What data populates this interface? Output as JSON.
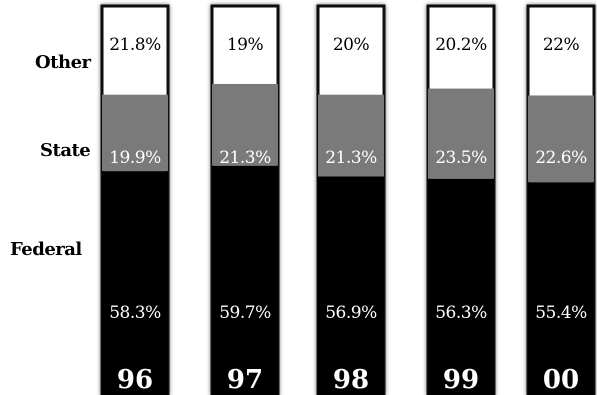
{
  "chart_data": {
    "type": "bar",
    "stacked": true,
    "normalized_percent": true,
    "categories": [
      "96",
      "97",
      "98",
      "99",
      "00"
    ],
    "series": [
      {
        "name": "Federal",
        "values": [
          58.3,
          59.7,
          56.9,
          56.3,
          55.4
        ],
        "labels": [
          "58.3%",
          "59.7%",
          "56.9%",
          "56.3%",
          "55.4%"
        ]
      },
      {
        "name": "State",
        "values": [
          19.9,
          21.3,
          21.3,
          23.5,
          22.6
        ],
        "labels": [
          "19.9%",
          "21.3%",
          "21.3%",
          "23.5%",
          "22.6%"
        ]
      },
      {
        "name": "Other",
        "values": [
          21.8,
          19,
          20,
          20.2,
          22
        ],
        "labels": [
          "21.8%",
          "19%",
          "20%",
          "20.2%",
          "22%"
        ]
      }
    ],
    "row_labels": [
      "Other",
      "State",
      "Federal"
    ],
    "colors": {
      "Federal": "#000000",
      "State": "#7a7a7a",
      "Other": "#ffffff",
      "bar_border": "#111111",
      "background": "#ffffff"
    },
    "legend": "left (series names as row labels)",
    "grid": false
  }
}
